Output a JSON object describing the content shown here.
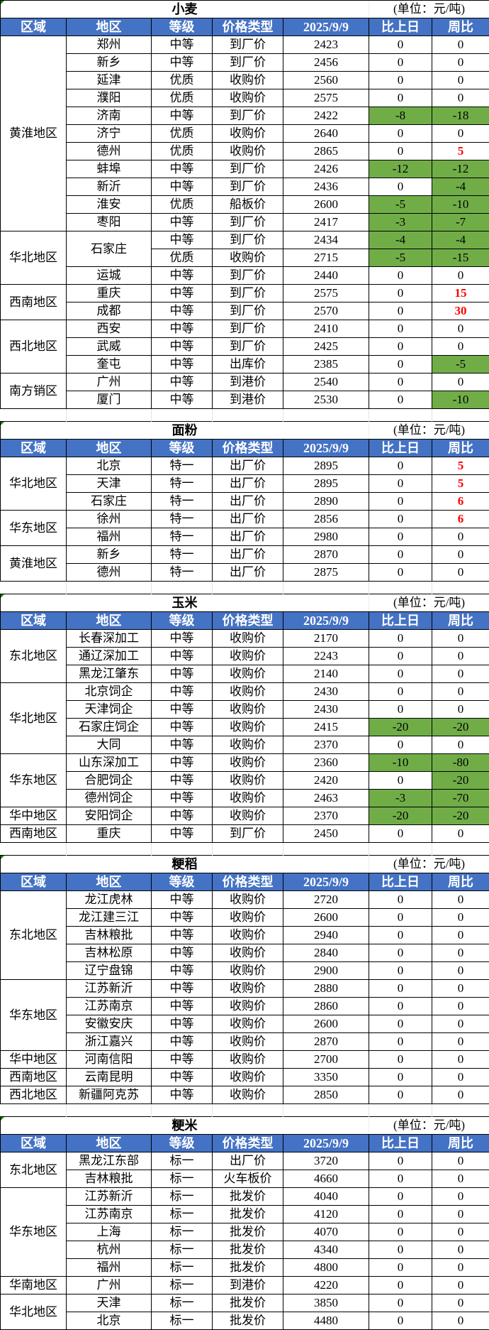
{
  "colors": {
    "header_bg": "#4472C4",
    "header_text": "#FFFFFF",
    "decrease_bg": "#70AD47",
    "increase_text": "#FF0000"
  },
  "headers": [
    "区域",
    "地区",
    "等级",
    "价格类型",
    "2025/9/9",
    "比上日",
    "周比"
  ],
  "sections": [
    {
      "title": "小麦",
      "unit": "(单位：元/吨)",
      "groups": [
        {
          "region": "黄淮地区",
          "rows": [
            [
              "郑州",
              "中等",
              "到厂价",
              "2423",
              "0",
              "0"
            ],
            [
              "新乡",
              "中等",
              "到厂价",
              "2456",
              "0",
              "0"
            ],
            [
              "延津",
              "优质",
              "收购价",
              "2560",
              "0",
              "0"
            ],
            [
              "濮阳",
              "优质",
              "收购价",
              "2575",
              "0",
              "0"
            ],
            [
              "济南",
              "中等",
              "到厂价",
              "2422",
              "-8",
              "-18"
            ],
            [
              "济宁",
              "优质",
              "收购价",
              "2640",
              "0",
              "0"
            ],
            [
              "德州",
              "优质",
              "收购价",
              "2865",
              "0",
              "5"
            ],
            [
              "蚌埠",
              "中等",
              "到厂价",
              "2426",
              "-12",
              "-12"
            ],
            [
              "新沂",
              "中等",
              "到厂价",
              "2436",
              "0",
              "-4"
            ],
            [
              "淮安",
              "优质",
              "船板价",
              "2600",
              "-5",
              "-10"
            ],
            [
              "枣阳",
              "中等",
              "到厂价",
              "2417",
              "-3",
              "-7"
            ]
          ]
        },
        {
          "region": "华北地区",
          "rows": [
            [
              "石家庄",
              "中等",
              "到厂价",
              "2434",
              "-4",
              "-4"
            ],
            [
              "",
              "优质",
              "收购价",
              "2715",
              "-5",
              "-15"
            ],
            [
              "运城",
              "中等",
              "到厂价",
              "2440",
              "0",
              "0"
            ]
          ]
        },
        {
          "region": "西南地区",
          "rows": [
            [
              "重庆",
              "中等",
              "到厂价",
              "2575",
              "0",
              "15"
            ],
            [
              "成都",
              "中等",
              "到厂价",
              "2570",
              "0",
              "30"
            ]
          ]
        },
        {
          "region": "西北地区",
          "rows": [
            [
              "西安",
              "中等",
              "到厂价",
              "2410",
              "0",
              "0"
            ],
            [
              "武威",
              "中等",
              "到厂价",
              "2425",
              "0",
              "0"
            ],
            [
              "奎屯",
              "中等",
              "出库价",
              "2385",
              "0",
              "-5"
            ]
          ]
        },
        {
          "region": "南方销区",
          "rows": [
            [
              "广州",
              "中等",
              "到港价",
              "2540",
              "0",
              "0"
            ],
            [
              "厦门",
              "中等",
              "到港价",
              "2530",
              "0",
              "-10"
            ]
          ]
        }
      ]
    },
    {
      "title": "面粉",
      "unit": "(单位：元/吨)",
      "groups": [
        {
          "region": "华北地区",
          "rows": [
            [
              "北京",
              "特一",
              "出厂价",
              "2895",
              "0",
              "5"
            ],
            [
              "天津",
              "特一",
              "出厂价",
              "2895",
              "0",
              "5"
            ],
            [
              "石家庄",
              "特一",
              "出厂价",
              "2890",
              "0",
              "6"
            ]
          ]
        },
        {
          "region": "华东地区",
          "rows": [
            [
              "徐州",
              "特一",
              "出厂价",
              "2856",
              "0",
              "6"
            ],
            [
              "福州",
              "特一",
              "出厂价",
              "2980",
              "0",
              "0"
            ]
          ]
        },
        {
          "region": "黄淮地区",
          "rows": [
            [
              "新乡",
              "特一",
              "出厂价",
              "2870",
              "0",
              "0"
            ],
            [
              "德州",
              "特一",
              "出厂价",
              "2875",
              "0",
              "0"
            ]
          ]
        }
      ]
    },
    {
      "title": "玉米",
      "unit": "(单位：元/吨)",
      "groups": [
        {
          "region": "东北地区",
          "rows": [
            [
              "长春深加工",
              "中等",
              "收购价",
              "2170",
              "0",
              "0"
            ],
            [
              "通辽深加工",
              "中等",
              "收购价",
              "2243",
              "0",
              "0"
            ],
            [
              "黑龙江肇东",
              "中等",
              "收购价",
              "2140",
              "0",
              "0"
            ]
          ]
        },
        {
          "region": "华北地区",
          "rows": [
            [
              "北京饲企",
              "中等",
              "收购价",
              "2430",
              "0",
              "0"
            ],
            [
              "天津饲企",
              "中等",
              "收购价",
              "2430",
              "0",
              "0"
            ],
            [
              "石家庄饲企",
              "中等",
              "收购价",
              "2415",
              "-20",
              "-20"
            ],
            [
              "大同",
              "中等",
              "收购价",
              "2370",
              "0",
              "0"
            ]
          ]
        },
        {
          "region": "华东地区",
          "rows": [
            [
              "山东深加工",
              "中等",
              "收购价",
              "2360",
              "-10",
              "-80"
            ],
            [
              "合肥饲企",
              "中等",
              "收购价",
              "2420",
              "0",
              "-20"
            ],
            [
              "德州饲企",
              "中等",
              "收购价",
              "2463",
              "-3",
              "-70"
            ]
          ]
        },
        {
          "region": "华中地区",
          "rows": [
            [
              "安阳饲企",
              "中等",
              "收购价",
              "2370",
              "-20",
              "-20"
            ]
          ]
        },
        {
          "region": "西南地区",
          "rows": [
            [
              "重庆",
              "中等",
              "到厂价",
              "2450",
              "0",
              "0"
            ]
          ]
        }
      ]
    },
    {
      "title": "粳稻",
      "unit": "(单位：元/吨)",
      "groups": [
        {
          "region": "东北地区",
          "rows": [
            [
              "龙江虎林",
              "中等",
              "收购价",
              "2720",
              "0",
              "0"
            ],
            [
              "龙江建三江",
              "中等",
              "收购价",
              "2600",
              "0",
              "0"
            ],
            [
              "吉林粮批",
              "中等",
              "收购价",
              "2940",
              "0",
              "0"
            ],
            [
              "吉林松原",
              "中等",
              "收购价",
              "2840",
              "0",
              "0"
            ],
            [
              "辽宁盘锦",
              "中等",
              "收购价",
              "2900",
              "0",
              "0"
            ]
          ]
        },
        {
          "region": "华东地区",
          "rows": [
            [
              "江苏新沂",
              "中等",
              "收购价",
              "2880",
              "0",
              "0"
            ],
            [
              "江苏南京",
              "中等",
              "收购价",
              "2860",
              "0",
              "0"
            ],
            [
              "安徽安庆",
              "中等",
              "收购价",
              "2600",
              "0",
              "0"
            ],
            [
              "浙江嘉兴",
              "中等",
              "收购价",
              "2870",
              "0",
              "0"
            ]
          ]
        },
        {
          "region": "华中地区",
          "rows": [
            [
              "河南信阳",
              "中等",
              "收购价",
              "2700",
              "0",
              "0"
            ]
          ]
        },
        {
          "region": "西南地区",
          "rows": [
            [
              "云南昆明",
              "中等",
              "收购价",
              "3350",
              "0",
              "0"
            ]
          ]
        },
        {
          "region": "西北地区",
          "rows": [
            [
              "新疆阿克苏",
              "中等",
              "收购价",
              "2850",
              "0",
              "0"
            ]
          ]
        }
      ]
    },
    {
      "title": "粳米",
      "unit": "(单位：元/吨)",
      "groups": [
        {
          "region": "东北地区",
          "rows": [
            [
              "黑龙江东部",
              "标一",
              "出厂价",
              "3720",
              "0",
              "0"
            ],
            [
              "吉林粮批",
              "标一",
              "火车板价",
              "4660",
              "0",
              "0"
            ]
          ]
        },
        {
          "region": "华东地区",
          "rows": [
            [
              "江苏新沂",
              "标一",
              "批发价",
              "4040",
              "0",
              "0"
            ],
            [
              "江苏南京",
              "标一",
              "批发价",
              "4120",
              "0",
              "0"
            ],
            [
              "上海",
              "标一",
              "批发价",
              "4070",
              "0",
              "0"
            ],
            [
              "杭州",
              "标一",
              "批发价",
              "4340",
              "0",
              "0"
            ],
            [
              "福州",
              "标一",
              "批发价",
              "4800",
              "0",
              "0"
            ]
          ]
        },
        {
          "region": "华南地区",
          "rows": [
            [
              "广州",
              "标一",
              "到港价",
              "4220",
              "0",
              "0"
            ]
          ]
        },
        {
          "region": "华北地区",
          "rows": [
            [
              "天津",
              "标一",
              "批发价",
              "3850",
              "0",
              "0"
            ],
            [
              "北京",
              "标一",
              "批发价",
              "4480",
              "0",
              "0"
            ]
          ]
        }
      ]
    }
  ]
}
